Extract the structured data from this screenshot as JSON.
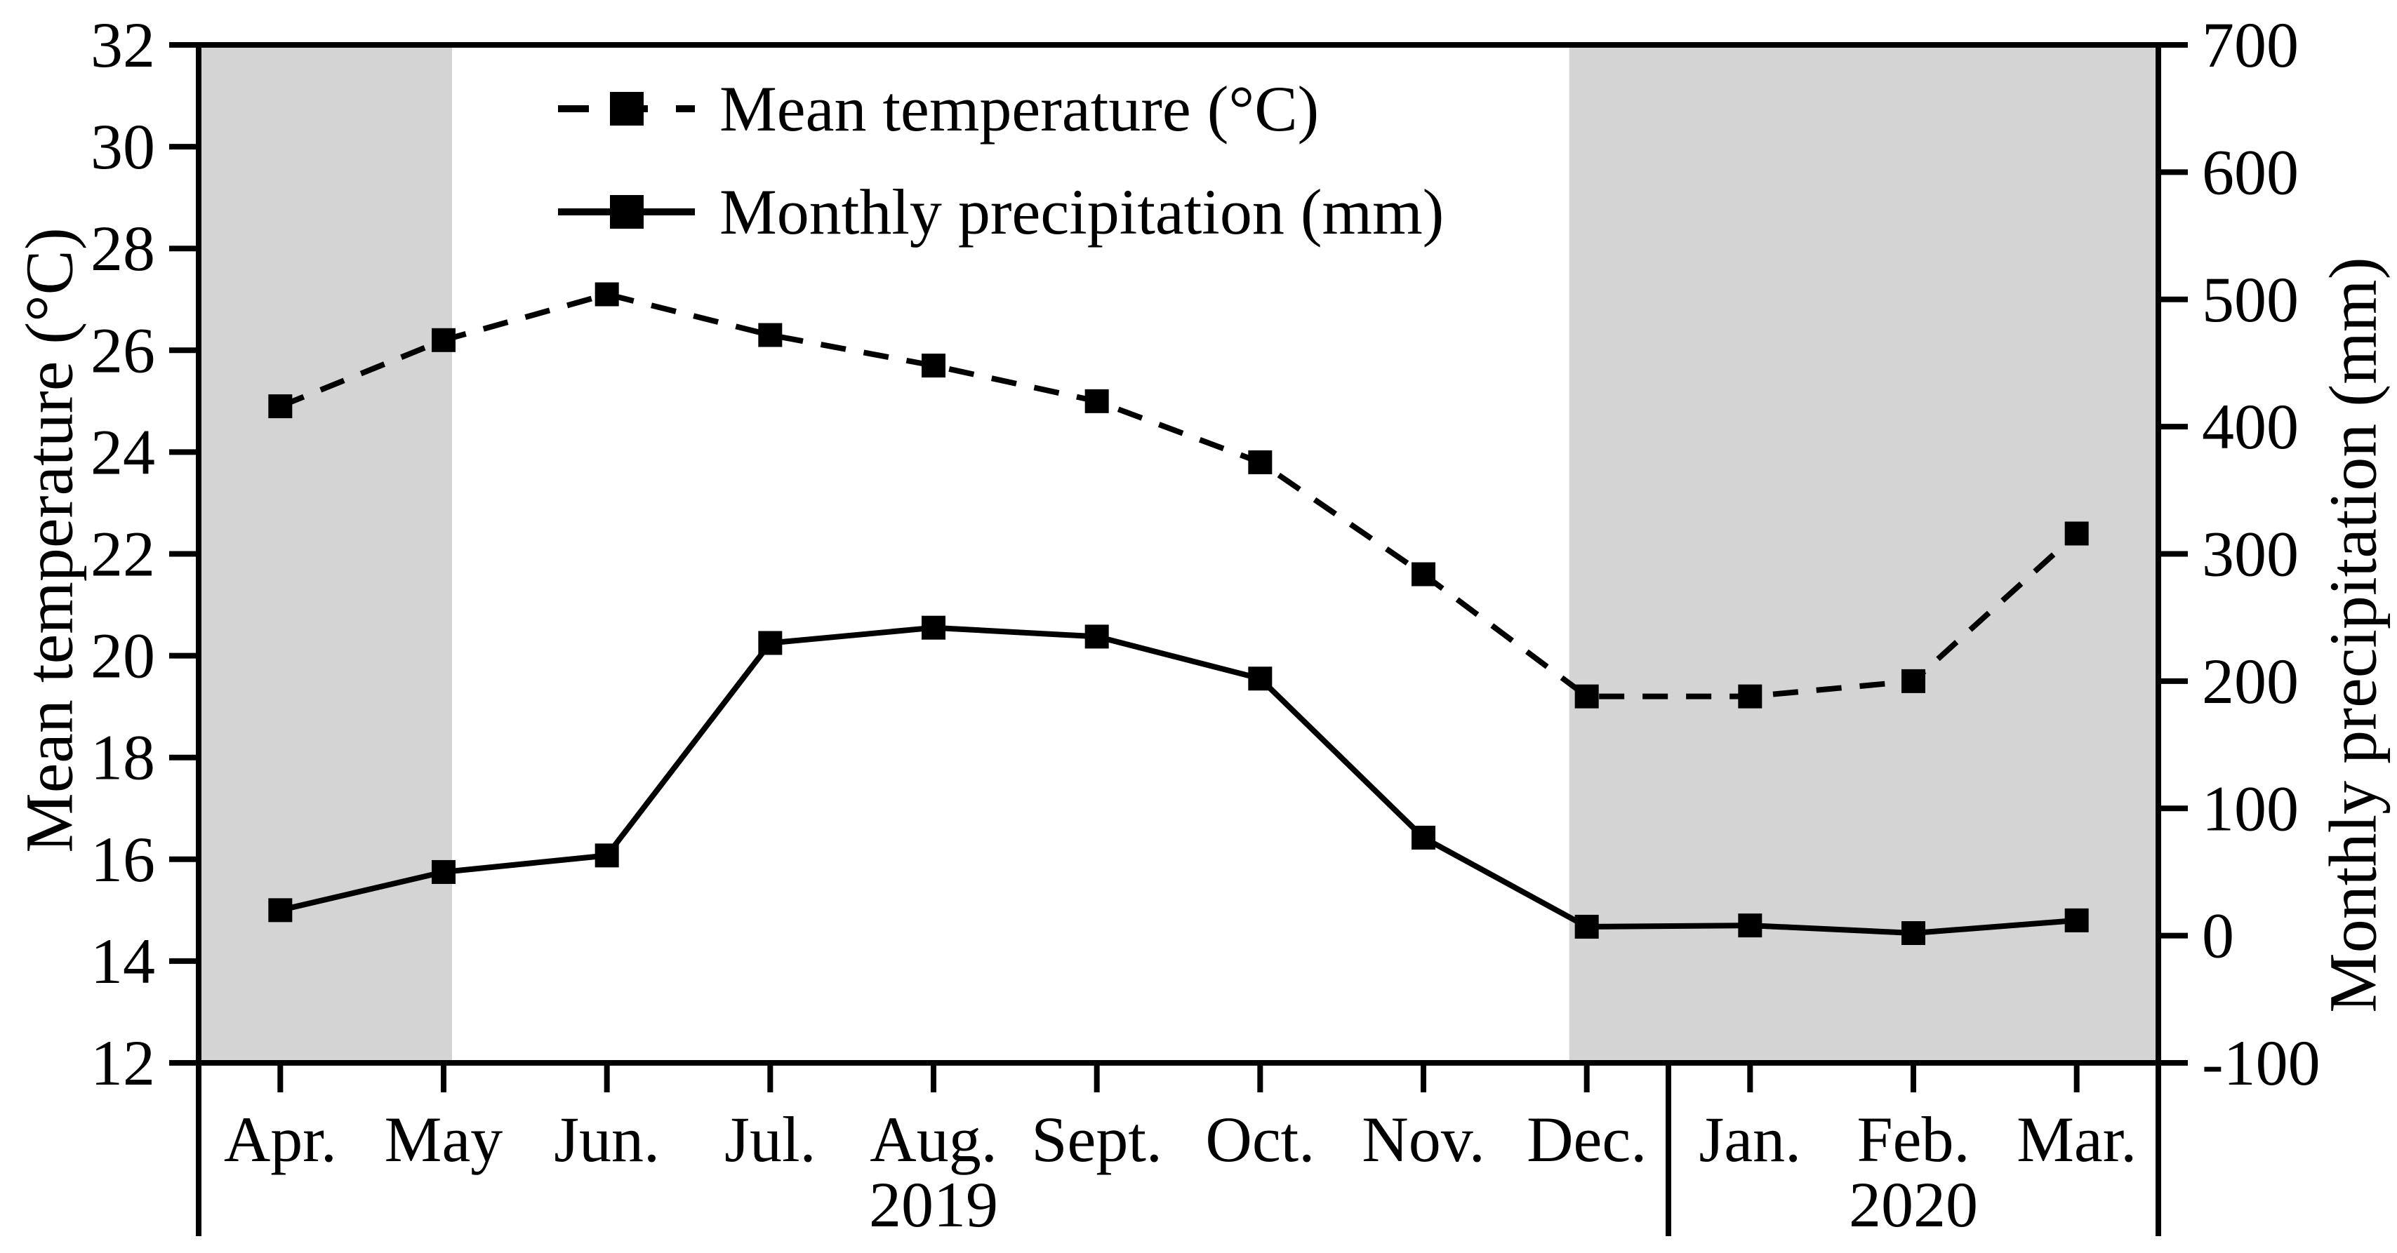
{
  "figure": {
    "background_color": "#ffffff",
    "band_color": "#d4d4d4",
    "line_color": "#000000"
  },
  "chart_data": {
    "type": "line",
    "title": "",
    "categories": [
      "Apr.",
      "May",
      "Jun.",
      "Jul.",
      "Aug.",
      "Sept.",
      "Oct.",
      "Nov.",
      "Dec.",
      "Jan.",
      "Feb.",
      "Mar."
    ],
    "series": [
      {
        "name": "Mean temperature  (°C)",
        "axis": "left",
        "line_style": "dashed",
        "marker": "square",
        "values": [
          24.9,
          26.2,
          27.1,
          26.3,
          25.7,
          25.0,
          23.8,
          21.6,
          19.2,
          19.2,
          19.5,
          22.4
        ]
      },
      {
        "name": "Monthly precipitation (mm)",
        "axis": "right",
        "line_style": "solid",
        "marker": "square",
        "values": [
          20,
          50,
          63,
          230,
          242,
          235,
          202,
          77,
          7,
          8,
          2,
          12
        ]
      }
    ],
    "left_axis": {
      "label": "Mean temperature (°C)",
      "min": 12,
      "max": 32,
      "ticks": [
        32,
        30,
        28,
        26,
        24,
        22,
        20,
        18,
        16,
        14,
        12
      ]
    },
    "right_axis": {
      "label": "Monthly precipitation (mm)",
      "min": -100,
      "max": 700,
      "ticks": [
        700,
        600,
        500,
        400,
        300,
        200,
        100,
        0,
        -100
      ]
    },
    "x_groups": [
      {
        "label": "2019",
        "months": 9
      },
      {
        "label": "2020",
        "months": 3
      }
    ],
    "shaded_bands": [
      {
        "from_month": 0,
        "to_month": 1
      },
      {
        "from_month": 8,
        "to_month": 11
      }
    ],
    "legend_position": "top-left-inside",
    "grid": false
  }
}
